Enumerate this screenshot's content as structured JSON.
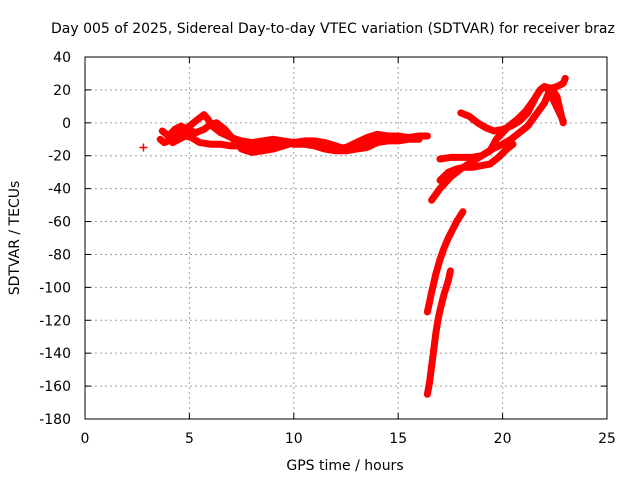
{
  "chart_data": {
    "type": "scatter",
    "title": "Day 005 of 2025, Sidereal Day-to-day VTEC variation (SDTVAR) for receiver braz",
    "xlabel": "GPS time / hours",
    "ylabel": "SDTVAR / TECUs",
    "xlim": [
      0,
      25
    ],
    "ylim": [
      -180,
      40
    ],
    "xticks": [
      0,
      5,
      10,
      15,
      20,
      25
    ],
    "yticks": [
      40,
      20,
      0,
      -20,
      -40,
      -60,
      -80,
      -100,
      -120,
      -140,
      -160,
      -180
    ],
    "grid": true,
    "marker": "+",
    "color": "#ff0000",
    "points": [
      [
        2.8,
        -15
      ]
    ],
    "series": [
      {
        "values": [
          [
            3.6,
            -10
          ],
          [
            3.8,
            -12
          ],
          [
            4.0,
            -11
          ],
          [
            4.3,
            -9
          ],
          [
            4.6,
            -6
          ],
          [
            4.9,
            -3
          ],
          [
            5.2,
            0
          ],
          [
            5.5,
            3
          ],
          [
            5.7,
            5
          ],
          [
            5.9,
            2
          ],
          [
            6.1,
            -2
          ],
          [
            6.5,
            -6
          ],
          [
            7.0,
            -9
          ],
          [
            7.5,
            -11
          ],
          [
            8.0,
            -12
          ],
          [
            8.5,
            -11
          ],
          [
            9.0,
            -10
          ],
          [
            9.5,
            -11
          ],
          [
            10.0,
            -12
          ],
          [
            10.5,
            -12
          ],
          [
            11.0,
            -13
          ],
          [
            11.5,
            -15
          ],
          [
            12.0,
            -16
          ],
          [
            12.5,
            -15
          ],
          [
            13.0,
            -12
          ],
          [
            13.5,
            -9
          ],
          [
            14.0,
            -7
          ],
          [
            14.5,
            -8
          ],
          [
            15.0,
            -9
          ],
          [
            15.5,
            -9
          ],
          [
            16.0,
            -8
          ],
          [
            16.4,
            -8
          ]
        ]
      },
      {
        "values": [
          [
            3.7,
            -5
          ],
          [
            4.0,
            -8
          ],
          [
            4.3,
            -4
          ],
          [
            4.6,
            -2
          ],
          [
            4.9,
            -4
          ],
          [
            5.3,
            -6
          ],
          [
            5.7,
            -4
          ],
          [
            6.0,
            -1
          ],
          [
            6.3,
            0
          ],
          [
            6.7,
            -4
          ],
          [
            7.1,
            -10
          ],
          [
            7.5,
            -16
          ],
          [
            8.0,
            -18
          ],
          [
            8.5,
            -17
          ],
          [
            9.0,
            -16
          ],
          [
            9.5,
            -14
          ],
          [
            10.0,
            -12
          ],
          [
            10.5,
            -11
          ],
          [
            11.0,
            -11
          ],
          [
            11.5,
            -12
          ],
          [
            12.0,
            -14
          ],
          [
            12.5,
            -16
          ],
          [
            13.0,
            -15
          ],
          [
            13.5,
            -12
          ],
          [
            14.0,
            -9
          ],
          [
            14.5,
            -8
          ],
          [
            15.0,
            -8
          ],
          [
            15.5,
            -9
          ],
          [
            16.0,
            -9
          ]
        ]
      },
      {
        "values": [
          [
            4.2,
            -12
          ],
          [
            4.5,
            -10
          ],
          [
            4.8,
            -8
          ],
          [
            5.1,
            -9
          ],
          [
            5.5,
            -12
          ],
          [
            6.0,
            -13
          ],
          [
            6.5,
            -13
          ],
          [
            7.0,
            -14
          ],
          [
            7.5,
            -14
          ],
          [
            8.0,
            -14
          ],
          [
            8.5,
            -13
          ],
          [
            9.0,
            -12
          ],
          [
            9.5,
            -12
          ],
          [
            10.0,
            -13
          ],
          [
            10.5,
            -13
          ],
          [
            11.0,
            -14
          ],
          [
            11.5,
            -16
          ],
          [
            12.0,
            -17
          ],
          [
            12.5,
            -17
          ],
          [
            13.0,
            -16
          ],
          [
            13.5,
            -15
          ],
          [
            14.0,
            -12
          ],
          [
            14.5,
            -11
          ],
          [
            15.0,
            -11
          ],
          [
            15.5,
            -10
          ],
          [
            16.0,
            -10
          ]
        ]
      },
      {
        "values": [
          [
            16.4,
            -115
          ],
          [
            16.6,
            -103
          ],
          [
            16.8,
            -92
          ],
          [
            17.0,
            -83
          ],
          [
            17.2,
            -76
          ],
          [
            17.4,
            -70
          ],
          [
            17.6,
            -65
          ],
          [
            17.8,
            -60
          ],
          [
            18.0,
            -56
          ],
          [
            18.1,
            -54
          ]
        ]
      },
      {
        "values": [
          [
            16.4,
            -165
          ],
          [
            16.5,
            -158
          ],
          [
            16.6,
            -148
          ],
          [
            16.7,
            -138
          ],
          [
            16.8,
            -128
          ],
          [
            16.9,
            -120
          ],
          [
            17.0,
            -114
          ],
          [
            17.2,
            -104
          ],
          [
            17.4,
            -96
          ],
          [
            17.5,
            -90
          ]
        ]
      },
      {
        "values": [
          [
            16.6,
            -47
          ],
          [
            17.0,
            -40
          ],
          [
            17.5,
            -33
          ],
          [
            18.0,
            -28
          ],
          [
            18.5,
            -24
          ],
          [
            19.0,
            -20
          ],
          [
            19.5,
            -16
          ],
          [
            20.0,
            -13
          ],
          [
            20.4,
            -10
          ],
          [
            20.8,
            -6
          ],
          [
            21.2,
            -2
          ],
          [
            21.6,
            5
          ],
          [
            22.0,
            12
          ],
          [
            22.2,
            18
          ],
          [
            22.4,
            20
          ],
          [
            22.6,
            16
          ],
          [
            22.8,
            5
          ],
          [
            22.9,
            0
          ]
        ]
      },
      {
        "values": [
          [
            17.0,
            -22
          ],
          [
            17.5,
            -21
          ],
          [
            18.0,
            -21
          ],
          [
            18.5,
            -21
          ],
          [
            19.0,
            -20
          ],
          [
            19.4,
            -17
          ],
          [
            19.7,
            -10
          ],
          [
            20.0,
            -6
          ],
          [
            20.3,
            -2
          ],
          [
            20.7,
            2
          ],
          [
            21.1,
            7
          ],
          [
            21.5,
            14
          ],
          [
            21.8,
            20
          ],
          [
            22.0,
            22
          ],
          [
            22.3,
            21
          ],
          [
            22.6,
            22
          ],
          [
            22.9,
            24
          ],
          [
            23.0,
            27
          ]
        ]
      },
      {
        "values": [
          [
            17.0,
            -35
          ],
          [
            17.4,
            -30
          ],
          [
            17.8,
            -28
          ],
          [
            18.2,
            -27
          ],
          [
            18.6,
            -27
          ],
          [
            19.0,
            -26
          ],
          [
            19.4,
            -25
          ],
          [
            19.8,
            -21
          ],
          [
            20.2,
            -16
          ],
          [
            20.5,
            -13
          ]
        ]
      },
      {
        "values": [
          [
            18.0,
            6
          ],
          [
            18.4,
            4
          ],
          [
            18.8,
            0
          ],
          [
            19.2,
            -3
          ],
          [
            19.6,
            -5
          ],
          [
            20.0,
            -4
          ],
          [
            20.4,
            -2
          ],
          [
            20.8,
            1
          ],
          [
            21.2,
            6
          ],
          [
            21.6,
            16
          ],
          [
            21.8,
            20
          ],
          [
            22.0,
            22
          ],
          [
            22.2,
            20
          ],
          [
            22.5,
            12
          ],
          [
            22.8,
            4
          ],
          [
            22.9,
            1
          ]
        ]
      }
    ]
  }
}
